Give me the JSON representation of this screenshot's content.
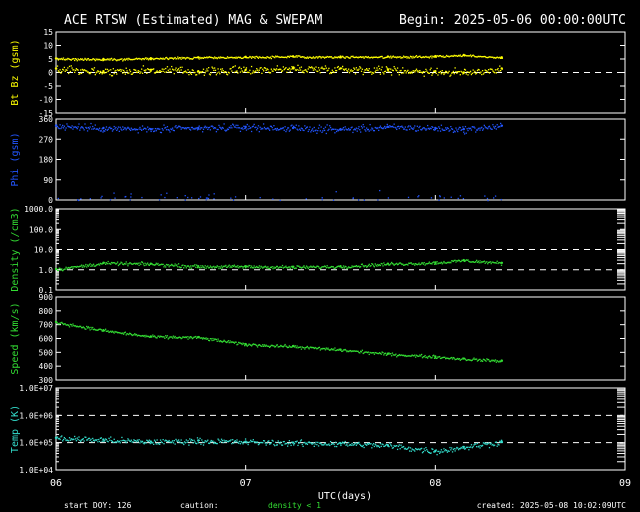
{
  "header": {
    "title": "ACE RTSW (Estimated) MAG & SWEPAM",
    "begin": "Begin: 2025-05-06 00:00:00UTC"
  },
  "footer": {
    "start_doy": "start DOY: 126",
    "caution": "caution:",
    "density_note": "density < 1",
    "created": "created: 2025-05-08 10:02:09UTC"
  },
  "colors": {
    "background": "#000000",
    "axis": "#ffffff",
    "bt_bz": "#ffff00",
    "phi": "#2255ff",
    "density": "#33dd33",
    "speed": "#33dd33",
    "temp": "#33ddcc"
  },
  "chart_data": [
    {
      "type": "scatter",
      "id": "bt-bz",
      "ylabel": "Bt  Bz  (gsm)",
      "ylim": [
        -15,
        15
      ],
      "yticks": [
        "15",
        "10",
        "5",
        "0",
        "-5",
        "-10",
        "-15"
      ],
      "reference_lines": [
        0
      ],
      "series": [
        {
          "name": "Bt",
          "x": [
            0,
            0.25,
            0.5,
            0.75,
            1.0,
            1.25,
            1.5,
            1.75,
            2.0,
            2.15,
            2.35
          ],
          "values": [
            5.2,
            5.0,
            5.3,
            5.6,
            5.8,
            6.0,
            5.9,
            5.9,
            6.1,
            6.5,
            5.6
          ]
        },
        {
          "name": "Bz",
          "x": [
            0,
            0.25,
            0.5,
            0.75,
            1.0,
            1.25,
            1.5,
            1.75,
            2.0,
            2.15,
            2.35
          ],
          "values": [
            1.5,
            0.5,
            1.0,
            0.5,
            1.0,
            1.5,
            1.5,
            1.0,
            0.5,
            0.0,
            1.5
          ]
        }
      ]
    },
    {
      "type": "scatter",
      "id": "phi",
      "ylabel": "Phi  (gsm)",
      "ylim": [
        0,
        360
      ],
      "yticks": [
        "360",
        "270",
        "180",
        "90",
        "0"
      ],
      "series": [
        {
          "name": "Phi",
          "x": [
            0,
            0.25,
            0.5,
            0.75,
            1.0,
            1.25,
            1.5,
            1.75,
            2.0,
            2.15,
            2.35
          ],
          "values": [
            330,
            320,
            315,
            320,
            325,
            320,
            315,
            325,
            320,
            315,
            330
          ]
        }
      ]
    },
    {
      "type": "scatter",
      "id": "density",
      "ylabel": "Density  (/cm3)",
      "scale": "log",
      "ylim": [
        0.1,
        1000
      ],
      "yticks": [
        "1000.0",
        "100.0",
        "10.0",
        "1.0",
        "0.1"
      ],
      "reference_lines": [
        10,
        1
      ],
      "series": [
        {
          "name": "Density",
          "x": [
            0,
            0.25,
            0.5,
            0.75,
            1.0,
            1.25,
            1.5,
            1.75,
            2.0,
            2.15,
            2.35
          ],
          "values": [
            1.1,
            2.2,
            2.0,
            1.5,
            1.5,
            1.4,
            1.5,
            2.0,
            2.3,
            3.0,
            2.2
          ]
        }
      ]
    },
    {
      "type": "scatter",
      "id": "speed",
      "ylabel": "Speed  (km/s)",
      "ylim": [
        300,
        900
      ],
      "yticks": [
        "900",
        "800",
        "700",
        "600",
        "500",
        "400",
        "300"
      ],
      "series": [
        {
          "name": "Speed",
          "x": [
            0,
            0.25,
            0.5,
            0.75,
            1.0,
            1.25,
            1.5,
            1.75,
            2.0,
            2.15,
            2.35
          ],
          "values": [
            720,
            660,
            615,
            610,
            560,
            545,
            520,
            490,
            470,
            455,
            440
          ]
        }
      ]
    },
    {
      "type": "scatter",
      "id": "temp",
      "ylabel": "Temp  (K)",
      "scale": "log",
      "ylim": [
        10000,
        10000000
      ],
      "yticks": [
        "1.0E+07",
        "1.0E+06",
        "1.0E+05",
        "1.0E+04"
      ],
      "reference_lines": [
        1000000,
        100000
      ],
      "series": [
        {
          "name": "Temp",
          "x": [
            0,
            0.25,
            0.5,
            0.75,
            1.0,
            1.25,
            1.5,
            1.75,
            2.0,
            2.15,
            2.35
          ],
          "values": [
            150000,
            130000,
            110000,
            120000,
            110000,
            100000,
            95000,
            80000,
            50000,
            70000,
            110000
          ]
        }
      ]
    }
  ],
  "x_axis": {
    "xlim": [
      0,
      3
    ],
    "ticks": [
      0,
      1,
      2,
      3
    ],
    "tick_labels": [
      "06",
      "07",
      "08",
      "09"
    ],
    "label": "UTC(days)"
  }
}
